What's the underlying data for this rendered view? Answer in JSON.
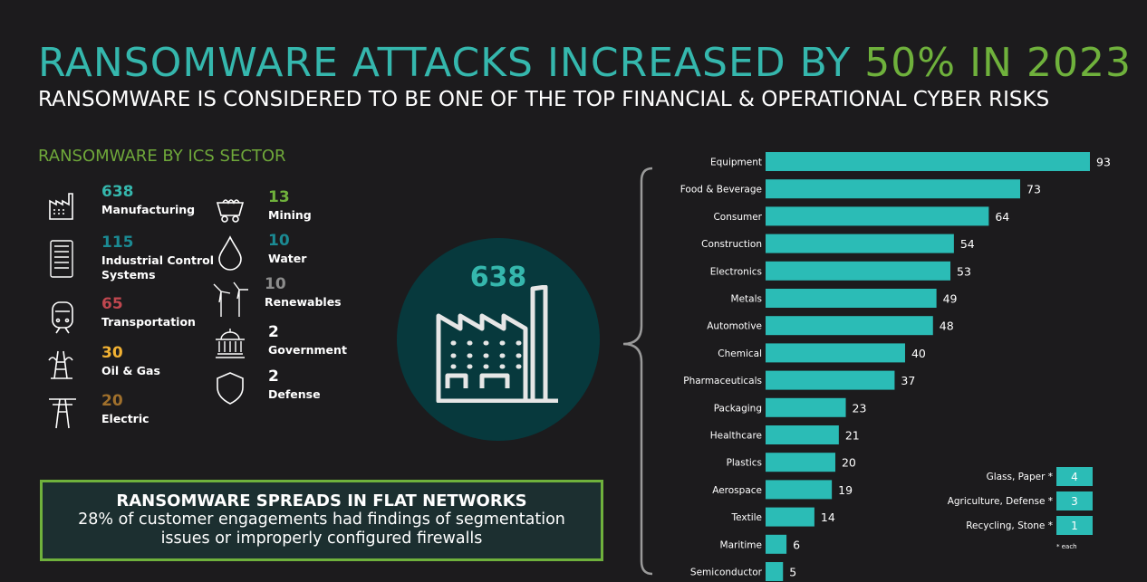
{
  "title": {
    "part1": "RANSOMWARE ATTACKS INCREASED BY",
    "part2": "50% IN 2023"
  },
  "subtitle": "RANSOMWARE IS CONSIDERED TO BE ONE OF THE TOP FINANCIAL & OPERATIONAL CYBER RISKS",
  "sector_heading": "RANSOMWARE BY ICS SECTOR",
  "sectors": [
    {
      "value": "638",
      "label": "Manufacturing",
      "color": "#35b7ad",
      "icon": "factory-icon"
    },
    {
      "value": "115",
      "label": "Industrial Control Systems",
      "color": "#1b8a93",
      "icon": "control-panel-icon"
    },
    {
      "value": "65",
      "label": "Transportation",
      "color": "#c0474f",
      "icon": "train-icon"
    },
    {
      "value": "30",
      "label": "Oil & Gas",
      "color": "#f2b233",
      "icon": "oil-rig-icon"
    },
    {
      "value": "20",
      "label": "Electric",
      "color": "#a0702c",
      "icon": "power-pylon-icon"
    },
    {
      "value": "13",
      "label": "Mining",
      "color": "#6fb13c",
      "icon": "mine-cart-icon"
    },
    {
      "value": "10",
      "label": "Water",
      "color": "#1b8a93",
      "icon": "water-drop-icon"
    },
    {
      "value": "10",
      "label": "Renewables",
      "color": "#8c8c8c",
      "icon": "wind-turbine-icon"
    },
    {
      "value": "2",
      "label": "Government",
      "color": "#ffffff",
      "icon": "government-building-icon"
    },
    {
      "value": "2",
      "label": "Defense",
      "color": "#ffffff",
      "icon": "shield-icon"
    }
  ],
  "center": {
    "value": "638",
    "icon": "factory-icon"
  },
  "callout": {
    "heading": "RANSOMWARE SPREADS IN FLAT NETWORKS",
    "line1": "28% of customer engagements had findings of segmentation",
    "line2": "issues or improperly configured firewalls"
  },
  "chart_data": {
    "type": "bar",
    "orientation": "horizontal",
    "categories": [
      "Equipment",
      "Food & Beverage",
      "Consumer",
      "Construction",
      "Electronics",
      "Metals",
      "Automotive",
      "Chemical",
      "Pharmaceuticals",
      "Packaging",
      "Healthcare",
      "Plastics",
      "Aerospace",
      "Textile",
      "Maritime",
      "Semiconductor"
    ],
    "values": [
      93,
      73,
      64,
      54,
      53,
      49,
      48,
      40,
      37,
      23,
      21,
      20,
      19,
      14,
      6,
      5
    ],
    "color": "#2bbcb6",
    "xlim": [
      0,
      93
    ],
    "extra": [
      {
        "label": "Glass, Paper *",
        "value": 4
      },
      {
        "label": "Agriculture, Defense *",
        "value": 3
      },
      {
        "label": "Recycling, Stone *",
        "value": 1
      }
    ],
    "footnote": "* each"
  }
}
